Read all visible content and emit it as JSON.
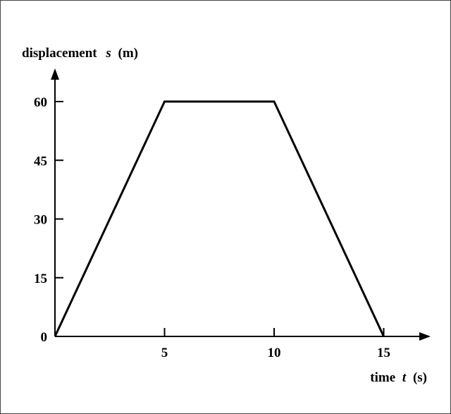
{
  "chart_data": {
    "type": "line",
    "title": "",
    "ylabel": {
      "prefix": "displacement",
      "var": "s",
      "unit": "(m)"
    },
    "xlabel": {
      "prefix": "time",
      "var": "t",
      "unit": "(s)"
    },
    "x_ticks": [
      5,
      10,
      15
    ],
    "y_ticks": [
      15,
      30,
      45,
      60
    ],
    "origin_label": "0",
    "xlim": [
      0,
      17
    ],
    "ylim": [
      0,
      72
    ],
    "grid": false,
    "series": [
      {
        "x": [
          0,
          5,
          10,
          15
        ],
        "y": [
          0,
          60,
          60,
          0
        ]
      }
    ]
  }
}
